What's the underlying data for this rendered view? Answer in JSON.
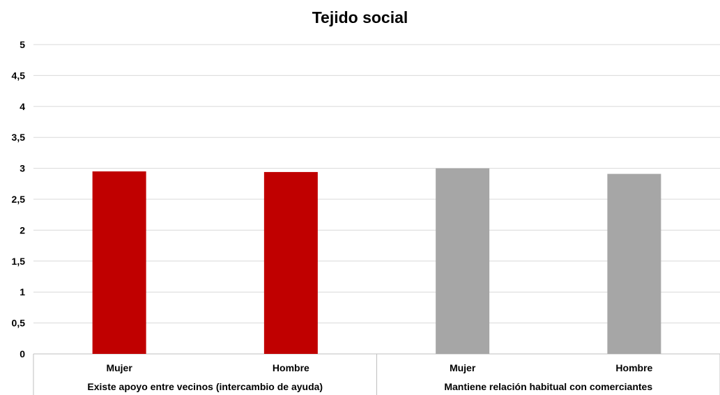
{
  "chart_data": {
    "type": "bar",
    "title": "Tejido social",
    "xlabel": "",
    "ylabel": "",
    "ylim": [
      0,
      5
    ],
    "yticks": [
      "0",
      "0,5",
      "1",
      "1,5",
      "2",
      "2,5",
      "3",
      "3,5",
      "4",
      "4,5",
      "5"
    ],
    "grid": true,
    "groups": [
      {
        "label": "Existe apoyo entre vecinos (intercambio de ayuda)",
        "color": "#c00000",
        "categories": [
          "Mujer",
          "Hombre"
        ],
        "values": [
          2.95,
          2.94
        ]
      },
      {
        "label": "Mantiene relación habitual con comerciantes",
        "color": "#a6a6a6",
        "categories": [
          "Mujer",
          "Hombre"
        ],
        "values": [
          3.0,
          2.91
        ]
      }
    ]
  }
}
